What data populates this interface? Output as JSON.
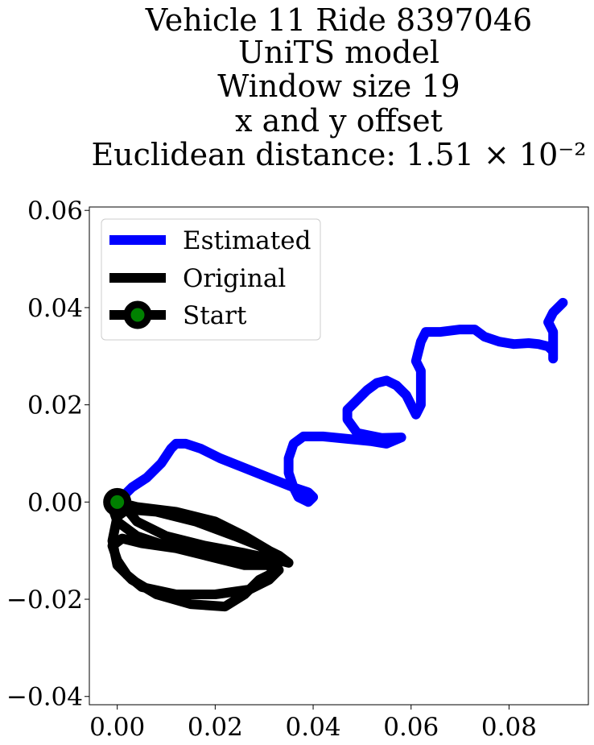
{
  "chart_data": {
    "type": "line",
    "title": [
      "Vehicle 11 Ride 8397046",
      "UniTS model",
      "Window size 19",
      "x and y offset",
      "Euclidean distance: 1.51 × 10⁻²"
    ],
    "xlabel": "",
    "ylabel": "",
    "xlim": [
      -0.0057,
      0.0962
    ],
    "ylim": [
      -0.0417,
      0.0607
    ],
    "xticks": [
      0.0,
      0.02,
      0.04,
      0.06,
      0.08
    ],
    "xtick_labels": [
      "0.00",
      "0.02",
      "0.04",
      "0.06",
      "0.08"
    ],
    "yticks": [
      -0.04,
      -0.02,
      0.0,
      0.02,
      0.04,
      0.06
    ],
    "ytick_labels": [
      "−0.04",
      "−0.02",
      "0.00",
      "0.02",
      "0.04",
      "0.06"
    ],
    "grid": false,
    "legend_position": "top-left",
    "series": [
      {
        "name": "Estimated",
        "color": "#0000ff",
        "points": [
          [
            0.0,
            0.0
          ],
          [
            0.003,
            0.003
          ],
          [
            0.006,
            0.005
          ],
          [
            0.009,
            0.008
          ],
          [
            0.011,
            0.011
          ],
          [
            0.012,
            0.012
          ],
          [
            0.014,
            0.012
          ],
          [
            0.017,
            0.011
          ],
          [
            0.021,
            0.009
          ],
          [
            0.026,
            0.007
          ],
          [
            0.031,
            0.005
          ],
          [
            0.036,
            0.003
          ],
          [
            0.039,
            0.002
          ],
          [
            0.04,
            0.001
          ],
          [
            0.039,
            0.0
          ],
          [
            0.037,
            0.001
          ],
          [
            0.036,
            0.003
          ],
          [
            0.035,
            0.006
          ],
          [
            0.035,
            0.009
          ],
          [
            0.036,
            0.012
          ],
          [
            0.038,
            0.0135
          ],
          [
            0.042,
            0.0135
          ],
          [
            0.047,
            0.013
          ],
          [
            0.052,
            0.0125
          ],
          [
            0.055,
            0.012
          ],
          [
            0.058,
            0.0133
          ],
          [
            0.054,
            0.0132
          ],
          [
            0.049,
            0.0142
          ],
          [
            0.047,
            0.017
          ],
          [
            0.047,
            0.019
          ],
          [
            0.049,
            0.021
          ],
          [
            0.051,
            0.023
          ],
          [
            0.053,
            0.0245
          ],
          [
            0.055,
            0.025
          ],
          [
            0.057,
            0.024
          ],
          [
            0.059,
            0.022
          ],
          [
            0.06,
            0.02
          ],
          [
            0.061,
            0.018
          ],
          [
            0.062,
            0.02
          ],
          [
            0.062,
            0.023
          ],
          [
            0.062,
            0.027
          ],
          [
            0.061,
            0.029
          ],
          [
            0.062,
            0.033
          ],
          [
            0.063,
            0.035
          ],
          [
            0.066,
            0.035
          ],
          [
            0.07,
            0.0355
          ],
          [
            0.073,
            0.0355
          ],
          [
            0.075,
            0.034
          ],
          [
            0.078,
            0.033
          ],
          [
            0.081,
            0.0325
          ],
          [
            0.084,
            0.0327
          ],
          [
            0.086,
            0.0325
          ],
          [
            0.088,
            0.032
          ],
          [
            0.089,
            0.031
          ],
          [
            0.089,
            0.0295
          ],
          [
            0.089,
            0.032
          ],
          [
            0.089,
            0.035
          ],
          [
            0.088,
            0.037
          ],
          [
            0.089,
            0.039
          ],
          [
            0.091,
            0.041
          ]
        ]
      },
      {
        "name": "Original",
        "color": "#000000",
        "points": [
          [
            0.0,
            0.0
          ],
          [
            0.004,
            -0.001
          ],
          [
            0.012,
            -0.002
          ],
          [
            0.02,
            -0.004
          ],
          [
            0.026,
            -0.007
          ],
          [
            0.031,
            -0.01
          ],
          [
            0.034,
            -0.012
          ],
          [
            0.032,
            -0.013
          ],
          [
            0.026,
            -0.013
          ],
          [
            0.018,
            -0.011
          ],
          [
            0.01,
            -0.009
          ],
          [
            0.004,
            -0.007
          ],
          [
            0.0,
            -0.004
          ],
          [
            -0.001,
            -0.001
          ],
          [
            0.002,
            -0.0015
          ],
          [
            0.008,
            -0.002
          ],
          [
            0.016,
            -0.004
          ],
          [
            0.024,
            -0.007
          ],
          [
            0.029,
            -0.009
          ],
          [
            0.033,
            -0.011
          ],
          [
            0.035,
            -0.0125
          ],
          [
            0.033,
            -0.012
          ],
          [
            0.026,
            -0.0105
          ],
          [
            0.018,
            -0.009
          ],
          [
            0.01,
            -0.007
          ],
          [
            0.004,
            -0.004
          ],
          [
            0.002,
            -0.0015
          ],
          [
            0.0,
            -0.003
          ],
          [
            -0.001,
            -0.008
          ],
          [
            0.0,
            -0.013
          ],
          [
            0.003,
            -0.016
          ],
          [
            0.008,
            -0.019
          ],
          [
            0.015,
            -0.021
          ],
          [
            0.022,
            -0.0215
          ],
          [
            0.026,
            -0.019
          ],
          [
            0.029,
            -0.016
          ],
          [
            0.032,
            -0.0145
          ],
          [
            0.031,
            -0.013
          ],
          [
            0.027,
            -0.0118
          ],
          [
            0.02,
            -0.0107
          ],
          [
            0.012,
            -0.0095
          ],
          [
            0.005,
            -0.0085
          ],
          [
            0.001,
            -0.0075
          ],
          [
            -0.001,
            -0.009
          ],
          [
            0.0,
            -0.012
          ],
          [
            0.002,
            -0.015
          ],
          [
            0.005,
            -0.0175
          ],
          [
            0.012,
            -0.019
          ],
          [
            0.02,
            -0.019
          ],
          [
            0.027,
            -0.018
          ],
          [
            0.031,
            -0.016
          ],
          [
            0.033,
            -0.014
          ]
        ]
      }
    ],
    "start": {
      "name": "Start",
      "point": [
        0.0,
        0.0
      ],
      "marker_face": "#008000",
      "marker_edge": "#000000"
    }
  }
}
